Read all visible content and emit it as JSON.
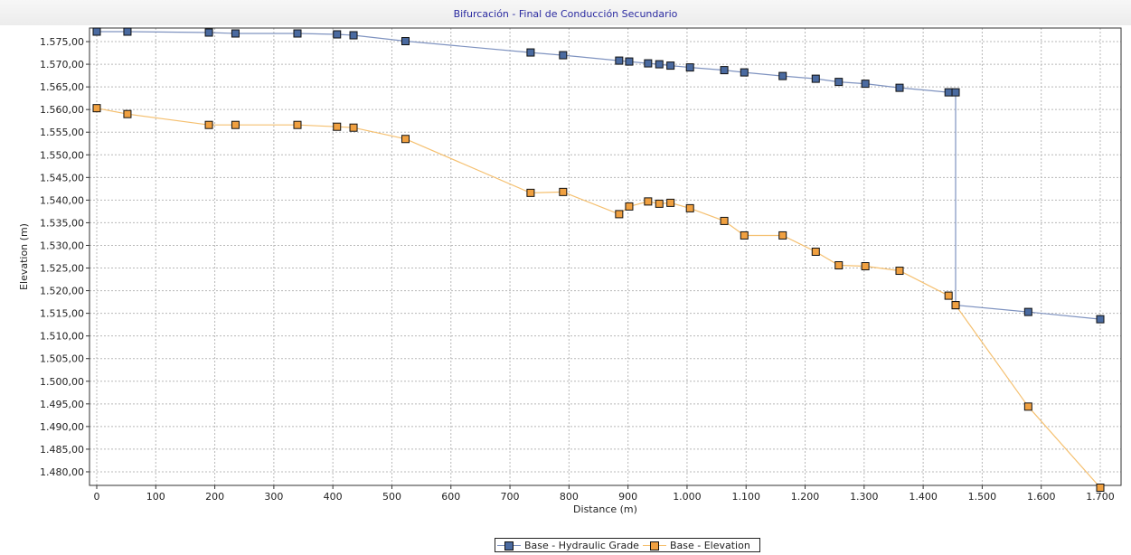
{
  "chart_data": {
    "type": "line",
    "title": "Bifurcación - Final de Conducción Secundario",
    "xlabel": "Distance (m)",
    "ylabel": "Elevation (m)",
    "xlim": [
      0,
      1700
    ],
    "ylim": [
      1477,
      1578
    ],
    "grid": true,
    "legend_position": "bottom-center",
    "x_ticks": [
      {
        "value": 0,
        "label": "0"
      },
      {
        "value": 100,
        "label": "100"
      },
      {
        "value": 200,
        "label": "200"
      },
      {
        "value": 300,
        "label": "300"
      },
      {
        "value": 400,
        "label": "400"
      },
      {
        "value": 500,
        "label": "500"
      },
      {
        "value": 600,
        "label": "600"
      },
      {
        "value": 700,
        "label": "700"
      },
      {
        "value": 800,
        "label": "800"
      },
      {
        "value": 900,
        "label": "900"
      },
      {
        "value": 1000,
        "label": "1.000"
      },
      {
        "value": 1100,
        "label": "1.100"
      },
      {
        "value": 1200,
        "label": "1.200"
      },
      {
        "value": 1300,
        "label": "1.300"
      },
      {
        "value": 1400,
        "label": "1.400"
      },
      {
        "value": 1500,
        "label": "1.500"
      },
      {
        "value": 1600,
        "label": "1.600"
      },
      {
        "value": 1700,
        "label": "1.700"
      }
    ],
    "y_ticks": [
      {
        "value": 1575,
        "label": "1.575,00"
      },
      {
        "value": 1570,
        "label": "1.570,00"
      },
      {
        "value": 1565,
        "label": "1.565,00"
      },
      {
        "value": 1560,
        "label": "1.560,00"
      },
      {
        "value": 1555,
        "label": "1.555,00"
      },
      {
        "value": 1550,
        "label": "1.550,00"
      },
      {
        "value": 1545,
        "label": "1.545,00"
      },
      {
        "value": 1540,
        "label": "1.540,00"
      },
      {
        "value": 1535,
        "label": "1.535,00"
      },
      {
        "value": 1530,
        "label": "1.530,00"
      },
      {
        "value": 1525,
        "label": "1.525,00"
      },
      {
        "value": 1520,
        "label": "1.520,00"
      },
      {
        "value": 1515,
        "label": "1.515,00"
      },
      {
        "value": 1510,
        "label": "1.510,00"
      },
      {
        "value": 1505,
        "label": "1.505,00"
      },
      {
        "value": 1500,
        "label": "1.500,00"
      },
      {
        "value": 1495,
        "label": "1.495,00"
      },
      {
        "value": 1490,
        "label": "1.490,00"
      },
      {
        "value": 1485,
        "label": "1.485,00"
      },
      {
        "value": 1480,
        "label": "1.480,00"
      }
    ],
    "series": [
      {
        "name": "Base - Hydraulic Grade",
        "color": "#7f93c0",
        "marker_color": "#4a6aa0",
        "points": [
          [
            0,
            1577.2
          ],
          [
            52,
            1577.2
          ],
          [
            190,
            1577.0
          ],
          [
            235,
            1576.8
          ],
          [
            340,
            1576.8
          ],
          [
            407,
            1576.6
          ],
          [
            435,
            1576.4
          ],
          [
            523,
            1575.1
          ],
          [
            735,
            1572.6
          ],
          [
            790,
            1572.0
          ],
          [
            885,
            1570.8
          ],
          [
            902,
            1570.6
          ],
          [
            934,
            1570.2
          ],
          [
            953,
            1570.0
          ],
          [
            972,
            1569.7
          ],
          [
            1005,
            1569.3
          ],
          [
            1063,
            1568.7
          ],
          [
            1097,
            1568.2
          ],
          [
            1162,
            1567.4
          ],
          [
            1218,
            1566.8
          ],
          [
            1257,
            1566.1
          ],
          [
            1302,
            1565.7
          ],
          [
            1360,
            1564.8
          ],
          [
            1443,
            1563.8
          ],
          [
            1455,
            1563.8
          ],
          [
            1455,
            1516.8
          ],
          [
            1578,
            1515.3
          ],
          [
            1700,
            1513.7
          ]
        ]
      },
      {
        "name": "Base - Elevation",
        "color": "#f5c070",
        "marker_color": "#f0a040",
        "points": [
          [
            0,
            1560.3
          ],
          [
            52,
            1559.0
          ],
          [
            190,
            1556.6
          ],
          [
            235,
            1556.6
          ],
          [
            340,
            1556.6
          ],
          [
            407,
            1556.2
          ],
          [
            435,
            1556.0
          ],
          [
            523,
            1553.5
          ],
          [
            735,
            1541.6
          ],
          [
            790,
            1541.8
          ],
          [
            885,
            1536.9
          ],
          [
            902,
            1538.6
          ],
          [
            934,
            1539.7
          ],
          [
            953,
            1539.2
          ],
          [
            972,
            1539.4
          ],
          [
            1005,
            1538.2
          ],
          [
            1063,
            1535.4
          ],
          [
            1097,
            1532.2
          ],
          [
            1162,
            1532.2
          ],
          [
            1218,
            1528.6
          ],
          [
            1257,
            1525.6
          ],
          [
            1302,
            1525.4
          ],
          [
            1360,
            1524.4
          ],
          [
            1443,
            1518.9
          ],
          [
            1455,
            1516.8
          ],
          [
            1578,
            1494.4
          ],
          [
            1700,
            1476.5
          ]
        ]
      }
    ]
  }
}
